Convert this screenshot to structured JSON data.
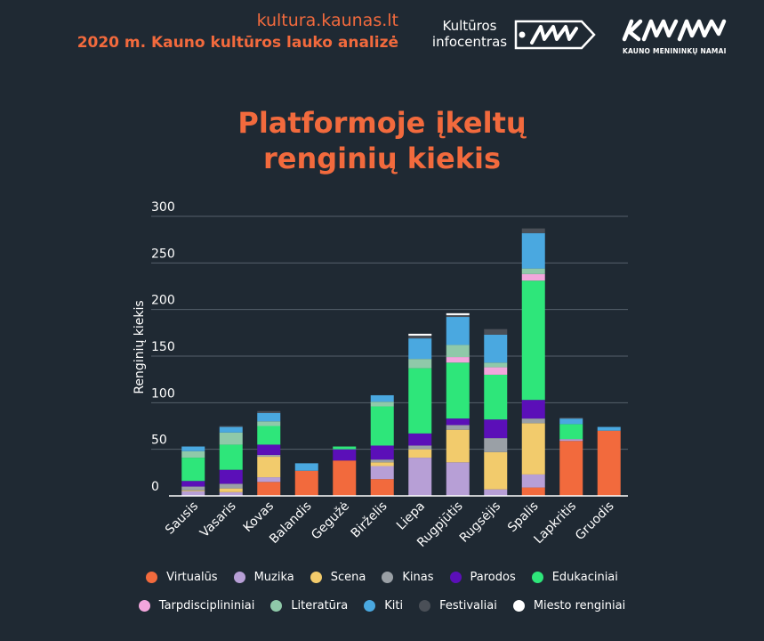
{
  "header": {
    "site_url": "kultura.kaunas.lt",
    "report_title": "2020 m. Kauno kultūros lauko analizė",
    "infocentras_logo": {
      "text_line1": "Kultūros",
      "text_line2": "infocentras"
    },
    "kmn_logo": {
      "mark": "KMN",
      "subtitle": "KAUNO MENININKŲ NAMAI"
    }
  },
  "chart_data": {
    "type": "bar",
    "stacked": true,
    "title_lines": [
      "Platformoje įkeltų",
      "renginių kiekis"
    ],
    "ylabel": "Renginių kiekis",
    "xlabel": "",
    "ylim": [
      0,
      300
    ],
    "yticks": [
      0,
      50,
      100,
      150,
      200,
      250,
      300
    ],
    "grid": true,
    "legend_position": "bottom",
    "categories": [
      "Sausis",
      "Vasaris",
      "Kovas",
      "Balandis",
      "Gegužė",
      "Birželis",
      "Liepa",
      "Rugpjūtis",
      "Rugsėjis",
      "Spalis",
      "Lapkritis",
      "Gruodis"
    ],
    "series": [
      {
        "name": "Virtualūs",
        "color": "#f26a3d",
        "values": [
          0,
          0,
          15,
          27,
          38,
          18,
          0,
          0,
          0,
          9,
          59,
          70
        ]
      },
      {
        "name": "Muzika",
        "color": "#b79fd6",
        "values": [
          5,
          4,
          5,
          0,
          0,
          14,
          41,
          36,
          7,
          14,
          2,
          0
        ]
      },
      {
        "name": "Scena",
        "color": "#f2cb6c",
        "values": [
          1,
          4,
          22,
          0,
          0,
          4,
          9,
          35,
          40,
          55,
          0,
          0
        ]
      },
      {
        "name": "Kinas",
        "color": "#9aa0a6",
        "values": [
          4,
          5,
          2,
          0,
          0,
          3,
          4,
          5,
          15,
          5,
          0,
          0
        ]
      },
      {
        "name": "Parodos",
        "color": "#5b0fb8",
        "values": [
          6,
          15,
          11,
          0,
          12,
          15,
          13,
          7,
          20,
          20,
          0,
          0
        ]
      },
      {
        "name": "Edukaciniai",
        "color": "#2ee67a",
        "values": [
          25,
          27,
          20,
          0,
          3,
          42,
          70,
          60,
          48,
          128,
          16,
          0
        ]
      },
      {
        "name": "Tarpdisciplininiai",
        "color": "#f2a6dc",
        "values": [
          0,
          0,
          0,
          0,
          0,
          0,
          0,
          6,
          8,
          7,
          0,
          0
        ]
      },
      {
        "name": "Literatūra",
        "color": "#8fc9a9",
        "values": [
          7,
          13,
          5,
          0,
          0,
          5,
          10,
          13,
          5,
          6,
          0,
          0
        ]
      },
      {
        "name": "Kiti",
        "color": "#4aa8e0",
        "values": [
          5,
          6,
          9,
          8,
          0,
          7,
          22,
          30,
          30,
          38,
          6,
          4
        ]
      },
      {
        "name": "Festivaliai",
        "color": "#4a4f57",
        "values": [
          0,
          1,
          2,
          0,
          0,
          0,
          3,
          2,
          6,
          5,
          1,
          0
        ]
      },
      {
        "name": "Miesto renginiai",
        "color": "#ffffff",
        "values": [
          0,
          0,
          0,
          0,
          0,
          0,
          2,
          2,
          0,
          0,
          0,
          0
        ]
      }
    ]
  }
}
